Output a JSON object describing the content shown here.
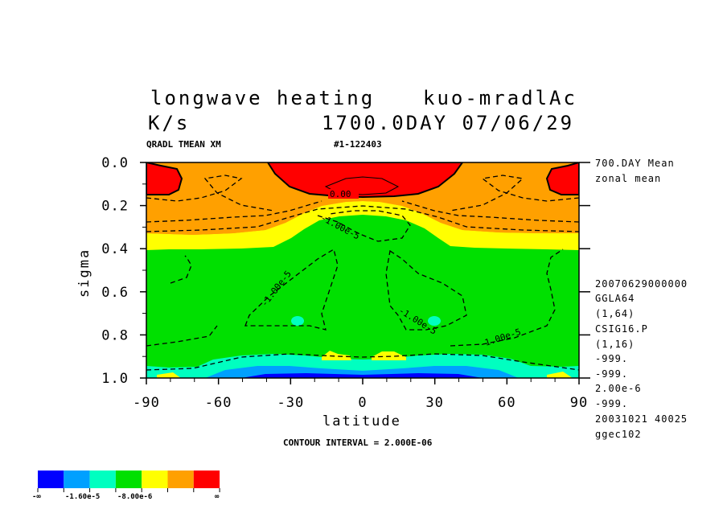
{
  "chart_data": {
    "type": "contour",
    "title_line1_left": "longwave heating",
    "title_line1_right": "kuo-mradlAc",
    "title_line2_left": "K/s",
    "title_line2_right": "1700.0DAY 07/06/29",
    "subtitle_left": "QRADL TMEAN XM",
    "subtitle_right": "#1-122403",
    "xlabel": "latitude",
    "ylabel": "sigma",
    "xlim": [
      -90,
      90
    ],
    "ylim": [
      0.0,
      1.0
    ],
    "x_ticks": [
      -90,
      -60,
      -30,
      0,
      30,
      60,
      90
    ],
    "x_tick_labels": [
      "-90",
      "-60",
      "-30",
      "0",
      "30",
      "60",
      "90"
    ],
    "y_ticks": [
      0.0,
      0.2,
      0.4,
      0.6,
      0.8,
      1.0
    ],
    "y_tick_labels": [
      "0.0",
      "0.2",
      "0.4",
      "0.6",
      "0.8",
      "1.0"
    ],
    "contour_interval_text": "CONTOUR INTERVAL = 2.000E-06",
    "contour_labels": [
      "0.00",
      "-1.00e-5",
      "-1.00e-5",
      "-1.00e-5",
      "-1.00e-5"
    ],
    "side_info": [
      "700.DAY Mean",
      "zonal mean",
      "20070629000000",
      "GGLA64",
      "(1,64)",
      "CSIG16.P",
      "(1,16)",
      "-999.",
      "-999.",
      "2.00e-6",
      "-999.",
      "20031021  40025",
      "ggec102"
    ],
    "colorbar": {
      "colors": [
        "#0000ff",
        "#00a0ff",
        "#00ffc0",
        "#00e000",
        "#ffff00",
        "#ffa000",
        "#ff0000"
      ],
      "labels": [
        "-∞",
        "-1.60e-5",
        "-8.00e-6",
        "∞"
      ]
    }
  }
}
